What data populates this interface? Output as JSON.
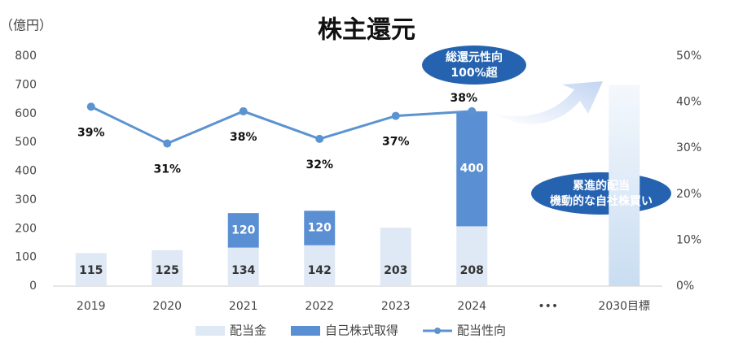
{
  "chart_data": {
    "type": "bar",
    "title": "株主還元",
    "y_label": "（億円）",
    "categories": [
      "2019",
      "2020",
      "2021",
      "2022",
      "2023",
      "2024",
      "•••",
      "2030目標"
    ],
    "series": [
      {
        "name": "配当金",
        "color": "#dfe8f5",
        "values": [
          115,
          125,
          134,
          142,
          203,
          208,
          null,
          null
        ]
      },
      {
        "name": "自己株式取得",
        "color": "#5b8fd4",
        "values": [
          null,
          null,
          120,
          120,
          null,
          400,
          null,
          null
        ]
      },
      {
        "name": "配当性向",
        "color": "#5b93d0",
        "axis": "y2",
        "values": [
          39,
          31,
          38,
          32,
          37,
          38,
          null,
          null
        ],
        "value_labels": [
          "39%",
          "31%",
          "38%",
          "32%",
          "37%",
          "38%",
          null,
          null
        ]
      }
    ],
    "target_values": [
      null,
      null,
      null,
      null,
      null,
      null,
      null,
      700
    ],
    "ylim": [
      0,
      800
    ],
    "yticks": [
      0,
      100,
      200,
      300,
      400,
      500,
      600,
      700,
      800
    ],
    "y2lim": [
      0,
      50
    ],
    "y2ticks": [
      {
        "value": 0,
        "label": "0%"
      },
      {
        "value": 10,
        "label": "10%"
      },
      {
        "value": 20,
        "label": "20%"
      },
      {
        "value": 30,
        "label": "30%"
      },
      {
        "value": 40,
        "label": "40%"
      },
      {
        "value": 50,
        "label": "50%"
      }
    ],
    "annotations": [
      [
        "総還元性向",
        "100%超"
      ],
      [
        "累進的配当",
        "機動的な自社株買い"
      ]
    ]
  }
}
